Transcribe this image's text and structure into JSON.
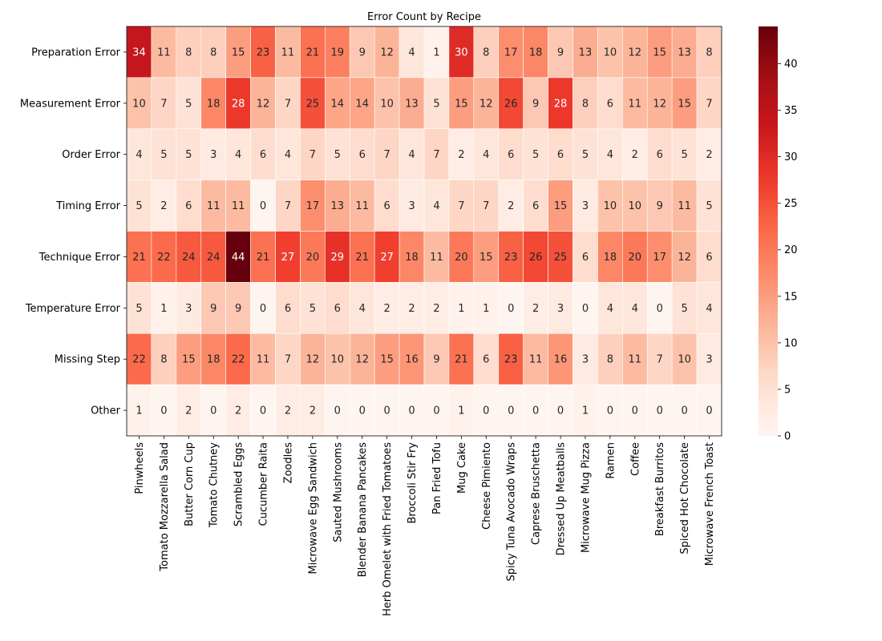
{
  "chart_data": {
    "type": "heatmap",
    "title": "Error Count by Recipe",
    "xlabel": "",
    "ylabel": "",
    "colormap": "Reds",
    "colorbar": {
      "range": [
        0,
        44
      ],
      "ticks": [
        0,
        5,
        10,
        15,
        20,
        25,
        30,
        35,
        40
      ]
    },
    "columns": [
      "Pinwheels",
      "Tomato Mozzarella Salad",
      "Butter Corn Cup",
      "Tomato Chutney",
      "Scrambled Eggs",
      "Cucumber Raita",
      "Zoodles",
      "Microwave Egg Sandwich",
      "Sauted Mushrooms",
      "Blender Banana Pancakes",
      "Herb Omelet with Fried Tomatoes",
      "Broccoli Stir Fry",
      "Pan Fried Tofu",
      "Mug Cake",
      "Cheese Pimiento",
      "Spicy Tuna Avocado Wraps",
      "Caprese Bruschetta",
      "Dressed Up Meatballs",
      "Microwave Mug Pizza",
      "Ramen",
      "Coffee",
      "Breakfast Burritos",
      "Spiced Hot Chocolate",
      "Microwave French Toast"
    ],
    "rows": [
      "Preparation Error",
      "Measurement Error",
      "Order Error",
      "Timing Error",
      "Technique Error",
      "Temperature Error",
      "Missing Step",
      "Other"
    ],
    "values": [
      [
        34,
        11,
        8,
        8,
        15,
        23,
        11,
        21,
        19,
        9,
        12,
        4,
        1,
        30,
        8,
        17,
        18,
        9,
        13,
        10,
        12,
        15,
        13,
        8
      ],
      [
        10,
        7,
        5,
        18,
        28,
        12,
        7,
        25,
        14,
        14,
        10,
        13,
        5,
        15,
        12,
        26,
        9,
        28,
        8,
        6,
        11,
        12,
        15,
        7
      ],
      [
        4,
        5,
        5,
        3,
        4,
        6,
        4,
        7,
        5,
        6,
        7,
        4,
        7,
        2,
        4,
        6,
        5,
        6,
        5,
        4,
        2,
        6,
        5,
        2
      ],
      [
        5,
        2,
        6,
        11,
        11,
        0,
        7,
        17,
        13,
        11,
        6,
        3,
        4,
        7,
        7,
        2,
        6,
        15,
        3,
        10,
        10,
        9,
        11,
        5
      ],
      [
        21,
        22,
        24,
        24,
        44,
        21,
        27,
        20,
        29,
        21,
        27,
        18,
        11,
        20,
        15,
        23,
        26,
        25,
        6,
        18,
        20,
        17,
        12,
        6
      ],
      [
        5,
        1,
        3,
        9,
        9,
        0,
        6,
        5,
        6,
        4,
        2,
        2,
        2,
        1,
        1,
        0,
        2,
        3,
        0,
        4,
        4,
        0,
        5,
        4
      ],
      [
        22,
        8,
        15,
        18,
        22,
        11,
        7,
        12,
        10,
        12,
        15,
        16,
        9,
        21,
        6,
        23,
        11,
        16,
        3,
        8,
        11,
        7,
        10,
        3
      ],
      [
        1,
        0,
        2,
        0,
        2,
        0,
        2,
        2,
        0,
        0,
        0,
        0,
        0,
        1,
        0,
        0,
        0,
        0,
        1,
        0,
        0,
        0,
        0,
        0
      ]
    ]
  }
}
